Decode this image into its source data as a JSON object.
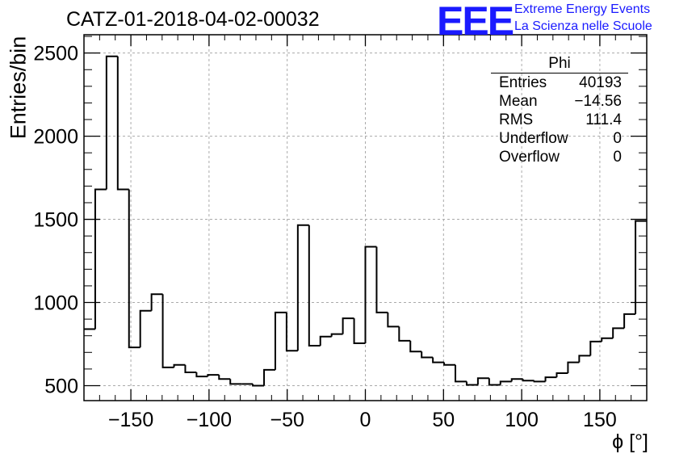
{
  "title": "CATZ-01-2018-04-02-00032",
  "logo": {
    "mark": "EEE",
    "line1": "Extreme Energy Events",
    "line2": "La Scienza nelle Scuole",
    "color": "#1a1aff"
  },
  "stats_box": {
    "title": "Phi",
    "rows": [
      {
        "label": "Entries",
        "value": "40193"
      },
      {
        "label": "Mean",
        "value": "−14.56"
      },
      {
        "label": "RMS",
        "value": "111.4"
      },
      {
        "label": "Underflow",
        "value": "0"
      },
      {
        "label": "Overflow",
        "value": "0"
      }
    ]
  },
  "chart_data": {
    "type": "bar",
    "histogram": true,
    "bin_edges_start": -180,
    "bin_width": 7.2,
    "values": [
      840,
      1680,
      2480,
      1680,
      730,
      950,
      1050,
      610,
      625,
      580,
      555,
      565,
      540,
      510,
      510,
      500,
      595,
      940,
      710,
      1465,
      740,
      795,
      810,
      905,
      755,
      1335,
      940,
      855,
      770,
      705,
      670,
      640,
      625,
      525,
      505,
      545,
      505,
      525,
      540,
      530,
      525,
      550,
      575,
      640,
      680,
      765,
      785,
      845,
      930,
      1490
    ],
    "xlabel": "ϕ [°]",
    "ylabel": "Entries/bin",
    "xlim": [
      -180,
      180
    ],
    "ylim": [
      410,
      2610
    ],
    "xticks": [
      -150,
      -100,
      -50,
      0,
      50,
      100,
      150
    ],
    "xtick_labels": [
      "−150",
      "−100",
      "−50",
      "0",
      "50",
      "100",
      "150"
    ],
    "yticks": [
      500,
      1000,
      1500,
      2000,
      2500
    ],
    "grid": true,
    "line_color": "#000000"
  }
}
